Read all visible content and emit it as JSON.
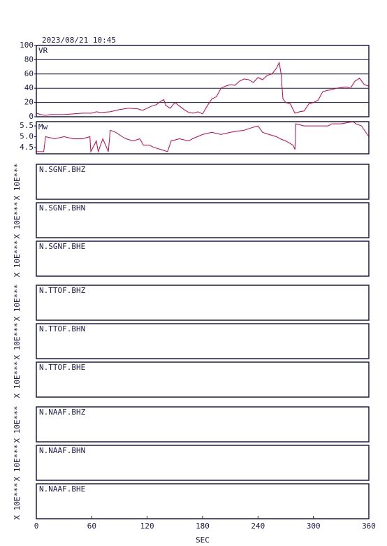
{
  "timestamp": "2023/08/21 10:45",
  "x_axis": {
    "xlim": [
      0,
      360
    ],
    "xticks": [
      0,
      60,
      120,
      180,
      240,
      300,
      360
    ],
    "label": "SEC"
  },
  "chart_data": [
    {
      "type": "line",
      "ylabel": "VR",
      "ylim": [
        0,
        100
      ],
      "yticks": [
        0,
        20,
        40,
        60,
        80,
        100
      ],
      "grid": true,
      "series": [
        {
          "color": "#cc0044",
          "x": [
            0,
            5,
            10,
            15,
            20,
            30,
            40,
            50,
            60,
            65,
            70,
            80,
            90,
            100,
            110,
            115,
            120,
            125,
            130,
            135,
            138,
            140,
            145,
            150,
            155,
            160,
            165,
            170,
            175,
            180,
            185,
            190,
            195,
            200,
            205,
            210,
            215,
            220,
            225,
            230,
            235,
            240,
            245,
            250,
            255,
            260,
            263,
            265,
            267,
            270,
            275,
            280,
            285,
            290,
            295,
            300,
            305,
            310,
            315,
            320,
            325,
            330,
            335,
            340,
            345,
            350,
            355,
            360
          ],
          "values": [
            5,
            3,
            2,
            3,
            3,
            3,
            4,
            5,
            5,
            7,
            6,
            7,
            10,
            12,
            11,
            9,
            12,
            15,
            17,
            22,
            24,
            16,
            12,
            20,
            15,
            10,
            6,
            5,
            7,
            4,
            15,
            25,
            28,
            40,
            43,
            45,
            44,
            50,
            53,
            52,
            48,
            55,
            52,
            58,
            60,
            68,
            76,
            60,
            25,
            20,
            18,
            5,
            7,
            8,
            18,
            20,
            23,
            35,
            37,
            38,
            40,
            41,
            42,
            40,
            50,
            54,
            45,
            43
          ]
        }
      ]
    },
    {
      "type": "line",
      "ylabel": "Mw",
      "ylim": [
        4.2,
        5.7
      ],
      "yticks": [
        4.5,
        {
          "value": 5,
          "label": "5.0"
        },
        5.5
      ],
      "grid": false,
      "series": [
        {
          "color": "#cc0044",
          "x": [
            0,
            8,
            10,
            20,
            30,
            40,
            50,
            58,
            59,
            65,
            67,
            72,
            78,
            80,
            86,
            93,
            97,
            105,
            112,
            116,
            123,
            127,
            135,
            142,
            146,
            155,
            165,
            169,
            180,
            190,
            200,
            210,
            225,
            232,
            240,
            245,
            252,
            260,
            264,
            270,
            278,
            280,
            281,
            290,
            300,
            316,
            320,
            330,
            343,
            346,
            352,
            360
          ],
          "values": [
            4.3,
            4.3,
            5.0,
            4.9,
            5.0,
            4.9,
            4.9,
            5.0,
            4.3,
            4.8,
            4.3,
            4.9,
            4.3,
            5.3,
            5.2,
            5.0,
            4.9,
            4.8,
            4.9,
            4.6,
            4.6,
            4.5,
            4.4,
            4.3,
            4.8,
            4.9,
            4.8,
            4.9,
            5.1,
            5.2,
            5.1,
            5.2,
            5.3,
            5.4,
            5.5,
            5.2,
            5.1,
            5.0,
            4.9,
            4.8,
            4.6,
            4.4,
            5.6,
            5.5,
            5.5,
            5.5,
            5.6,
            5.6,
            5.7,
            5.6,
            5.5,
            5.0
          ]
        }
      ]
    },
    {
      "type": "trace",
      "label": "N.SGNF.BHZ",
      "ylabel": "X 10E***"
    },
    {
      "type": "trace",
      "label": "N.SGNF.BHN",
      "ylabel": "X 10E***"
    },
    {
      "type": "trace",
      "label": "N.SGNF.BHE",
      "ylabel": "X 10E***"
    },
    {
      "type": "trace",
      "label": "N.TTOF.BHZ",
      "ylabel": "X 10E***"
    },
    {
      "type": "trace",
      "label": "N.TTOF.BHN",
      "ylabel": "X 10E***"
    },
    {
      "type": "trace",
      "label": "N.TTOF.BHE",
      "ylabel": "X 10E***"
    },
    {
      "type": "trace",
      "label": "N.NAAF.BHZ",
      "ylabel": "X 10E***"
    },
    {
      "type": "trace",
      "label": "N.NAAF.BHN",
      "ylabel": "X 10E***"
    },
    {
      "type": "trace",
      "label": "N.NAAF.BHE",
      "ylabel": "X 10E***"
    }
  ]
}
